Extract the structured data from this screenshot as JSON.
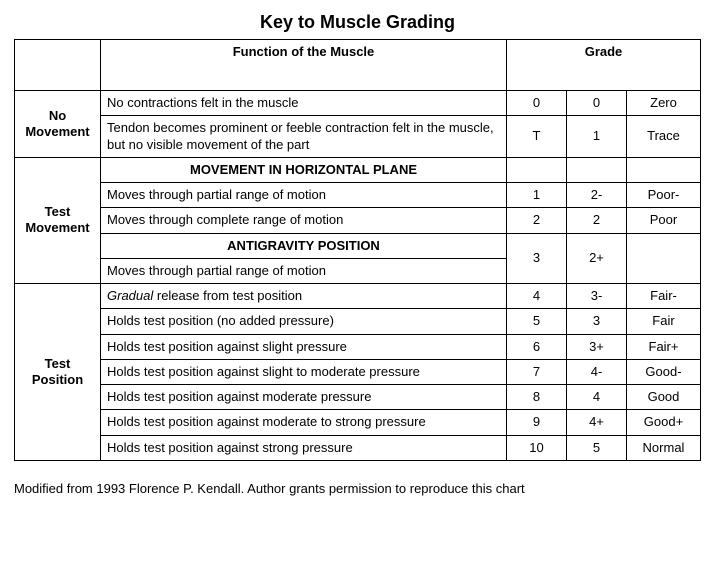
{
  "title": "Key to Muscle Grading",
  "headers": {
    "function": "Function of the Muscle",
    "grade": "Grade"
  },
  "categories": {
    "no_movement": "No Movement",
    "test_movement": "Test Movement",
    "test_position": "Test Position"
  },
  "sections": {
    "movement_horizontal": "MOVEMENT IN HORIZONTAL PLANE",
    "antigravity": "ANTIGRAVITY POSITION"
  },
  "rows": {
    "nm1": {
      "func": "No contractions felt in the muscle",
      "g1": "0",
      "g2": "0",
      "g3": "Zero"
    },
    "nm2": {
      "func": "Tendon becomes prominent or feeble contraction felt in the muscle, but no visible movement of the part",
      "g1": "T",
      "g2": "1",
      "g3": "Trace"
    },
    "tm1": {
      "func": "Moves through partial range of motion",
      "g1": "1",
      "g2": "2-",
      "g3": "Poor-"
    },
    "tm2": {
      "func": "Moves through complete range of motion",
      "g1": "2",
      "g2": "2",
      "g3": "Poor"
    },
    "tm3": {
      "func": "Moves through partial range of motion",
      "g1": "3",
      "g2": "2+",
      "g3": ""
    },
    "tp1": {
      "func_prefix_italic": "Gradual",
      "func_rest": " release from test position",
      "g1": "4",
      "g2": "3-",
      "g3": "Fair-"
    },
    "tp2": {
      "func": "Holds test position (no added pressure)",
      "g1": "5",
      "g2": "3",
      "g3": "Fair"
    },
    "tp3": {
      "func": "Holds test position against slight pressure",
      "g1": "6",
      "g2": "3+",
      "g3": "Fair+"
    },
    "tp4": {
      "func": "Holds test position against slight to moderate pressure",
      "g1": "7",
      "g2": "4-",
      "g3": "Good-"
    },
    "tp5": {
      "func": "Holds test position against moderate pressure",
      "g1": "8",
      "g2": "4",
      "g3": "Good"
    },
    "tp6": {
      "func": "Holds test position against moderate to strong pressure",
      "g1": "9",
      "g2": "4+",
      "g3": "Good+"
    },
    "tp7": {
      "func": "Holds test position against strong pressure",
      "g1": "10",
      "g2": "5",
      "g3": "Normal"
    }
  },
  "footnote": "Modified from 1993 Florence P. Kendall. Author grants permission to reproduce this chart"
}
